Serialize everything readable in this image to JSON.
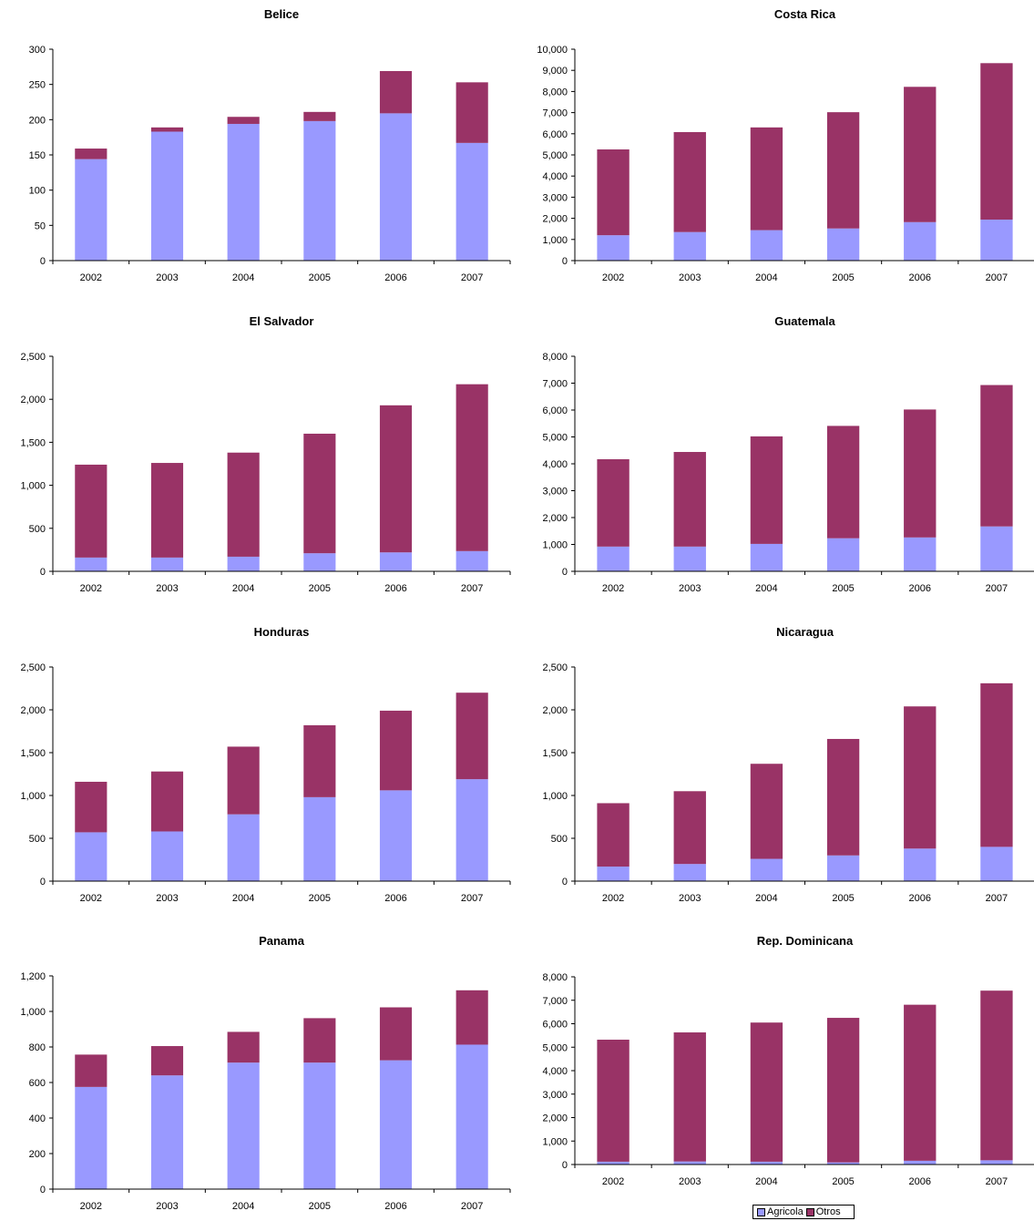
{
  "colors": {
    "agricola": "#9999ff",
    "otros": "#993366"
  },
  "legend": {
    "items": [
      "Agricola",
      "Otros"
    ]
  },
  "chart_data": [
    {
      "type": "bar",
      "title": "Belice",
      "categories": [
        "2002",
        "2003",
        "2004",
        "2005",
        "2006",
        "2007"
      ],
      "series": [
        {
          "name": "Agricola",
          "values": [
            144,
            183,
            194,
            198,
            209,
            167
          ]
        },
        {
          "name": "Otros",
          "values": [
            15,
            6,
            10,
            13,
            60,
            86
          ]
        }
      ],
      "ylim": [
        0,
        300
      ],
      "yticks": [
        0,
        50,
        100,
        150,
        200,
        250,
        300
      ],
      "ytick_labels": [
        "0",
        "50",
        "100",
        "150",
        "200",
        "250",
        "300"
      ]
    },
    {
      "type": "bar",
      "title": "Costa Rica",
      "categories": [
        "2002",
        "2003",
        "2004",
        "2005",
        "2006",
        "2007"
      ],
      "series": [
        {
          "name": "Agricola",
          "values": [
            1200,
            1350,
            1440,
            1520,
            1820,
            1940
          ]
        },
        {
          "name": "Otros",
          "values": [
            4060,
            4730,
            4860,
            5500,
            6400,
            7400
          ]
        }
      ],
      "ylim": [
        0,
        10000
      ],
      "yticks": [
        0,
        1000,
        2000,
        3000,
        4000,
        5000,
        6000,
        7000,
        8000,
        9000,
        10000
      ],
      "ytick_labels": [
        "0",
        "1,000",
        "2,000",
        "3,000",
        "4,000",
        "5,000",
        "6,000",
        "7,000",
        "8,000",
        "9,000",
        "10,000"
      ]
    },
    {
      "type": "bar",
      "title": "El Salvador",
      "categories": [
        "2002",
        "2003",
        "2004",
        "2005",
        "2006",
        "2007"
      ],
      "series": [
        {
          "name": "Agricola",
          "values": [
            160,
            160,
            170,
            210,
            220,
            235
          ]
        },
        {
          "name": "Otros",
          "values": [
            1080,
            1100,
            1210,
            1390,
            1710,
            1940
          ]
        }
      ],
      "ylim": [
        0,
        2500
      ],
      "yticks": [
        0,
        500,
        1000,
        1500,
        2000,
        2500
      ],
      "ytick_labels": [
        "0",
        "500",
        "1,000",
        "1,500",
        "2,000",
        "2,500"
      ]
    },
    {
      "type": "bar",
      "title": "Guatemala",
      "categories": [
        "2002",
        "2003",
        "2004",
        "2005",
        "2006",
        "2007"
      ],
      "series": [
        {
          "name": "Agricola",
          "values": [
            920,
            920,
            1020,
            1230,
            1260,
            1670
          ]
        },
        {
          "name": "Otros",
          "values": [
            3250,
            3520,
            4000,
            4180,
            4760,
            5260
          ]
        }
      ],
      "ylim": [
        0,
        8000
      ],
      "yticks": [
        0,
        1000,
        2000,
        3000,
        4000,
        5000,
        6000,
        7000,
        8000
      ],
      "ytick_labels": [
        "0",
        "1,000",
        "2,000",
        "3,000",
        "4,000",
        "5,000",
        "6,000",
        "7,000",
        "8,000"
      ]
    },
    {
      "type": "bar",
      "title": "Honduras",
      "categories": [
        "2002",
        "2003",
        "2004",
        "2005",
        "2006",
        "2007"
      ],
      "series": [
        {
          "name": "Agricola",
          "values": [
            570,
            580,
            780,
            980,
            1060,
            1190
          ]
        },
        {
          "name": "Otros",
          "values": [
            590,
            700,
            790,
            840,
            930,
            1010
          ]
        }
      ],
      "ylim": [
        0,
        2500
      ],
      "yticks": [
        0,
        500,
        1000,
        1500,
        2000,
        2500
      ],
      "ytick_labels": [
        "0",
        "500",
        "1,000",
        "1,500",
        "2,000",
        "2,500"
      ]
    },
    {
      "type": "bar",
      "title": "Nicaragua",
      "categories": [
        "2002",
        "2003",
        "2004",
        "2005",
        "2006",
        "2007"
      ],
      "series": [
        {
          "name": "Agricola",
          "values": [
            170,
            200,
            260,
            300,
            380,
            400
          ]
        },
        {
          "name": "Otros",
          "values": [
            740,
            850,
            1110,
            1360,
            1660,
            1910
          ]
        }
      ],
      "ylim": [
        0,
        2500
      ],
      "yticks": [
        0,
        500,
        1000,
        1500,
        2000,
        2500
      ],
      "ytick_labels": [
        "0",
        "500",
        "1,000",
        "1,500",
        "2,000",
        "2,500"
      ]
    },
    {
      "type": "bar",
      "title": "Panama",
      "categories": [
        "2002",
        "2003",
        "2004",
        "2005",
        "2006",
        "2007"
      ],
      "series": [
        {
          "name": "Agricola",
          "values": [
            575,
            640,
            712,
            712,
            725,
            813
          ]
        },
        {
          "name": "Otros",
          "values": [
            182,
            165,
            173,
            250,
            298,
            306
          ]
        }
      ],
      "ylim": [
        0,
        1200
      ],
      "yticks": [
        0,
        200,
        400,
        600,
        800,
        1000,
        1200
      ],
      "ytick_labels": [
        "0",
        "200",
        "400",
        "600",
        "800",
        "1,000",
        "1,200"
      ]
    },
    {
      "type": "bar",
      "title": "Rep. Dominicana",
      "categories": [
        "2002",
        "2003",
        "2004",
        "2005",
        "2006",
        "2007"
      ],
      "series": [
        {
          "name": "Agricola",
          "values": [
            120,
            130,
            120,
            90,
            160,
            180
          ]
        },
        {
          "name": "Otros",
          "values": [
            5200,
            5500,
            5930,
            6160,
            6650,
            7230
          ]
        }
      ],
      "ylim": [
        0,
        8000
      ],
      "yticks": [
        0,
        1000,
        2000,
        3000,
        4000,
        5000,
        6000,
        7000,
        8000
      ],
      "ytick_labels": [
        "0",
        "1,000",
        "2,000",
        "3,000",
        "4,000",
        "5,000",
        "6,000",
        "7,000",
        "8,000"
      ]
    }
  ]
}
